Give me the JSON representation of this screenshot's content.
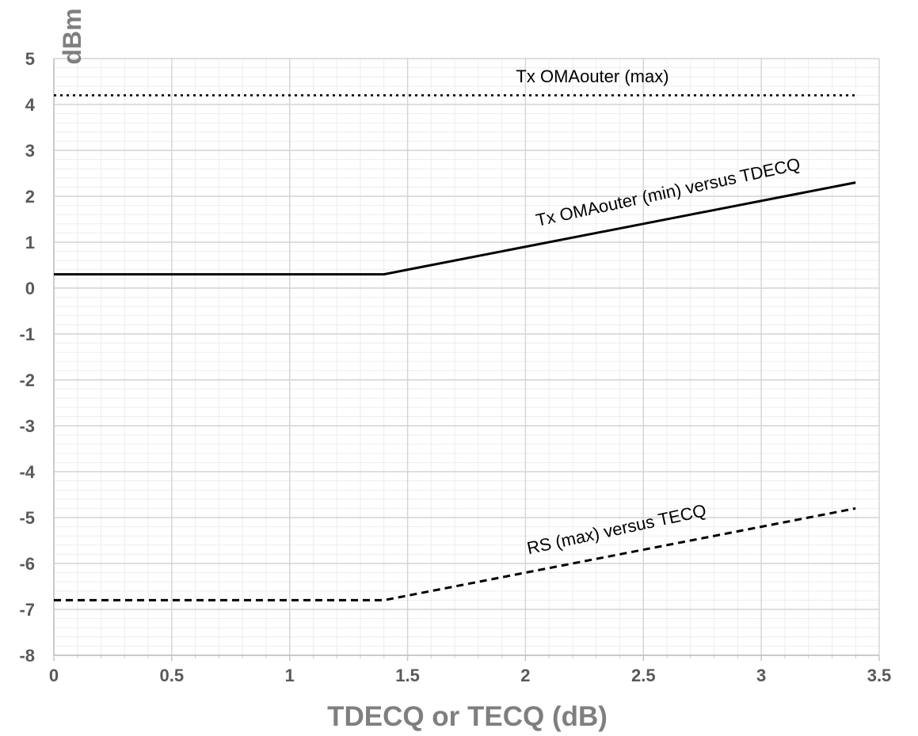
{
  "chart_data": {
    "type": "line",
    "title": "",
    "xlabel": "TDECQ or TECQ (dB)",
    "ylabel": "dBm",
    "xlim": [
      0,
      3.5
    ],
    "ylim": [
      -8,
      5
    ],
    "x_ticks": [
      "0",
      "0.5",
      "1",
      "1.5",
      "2",
      "2.5",
      "3",
      "3.5"
    ],
    "y_ticks": [
      "-8",
      "-7",
      "-6",
      "-5",
      "-4",
      "-3",
      "-2",
      "-1",
      "0",
      "1",
      "2",
      "3",
      "4",
      "5"
    ],
    "grid": true,
    "legend": "none",
    "series": [
      {
        "name": "Tx OMAouter (max)",
        "style": "dotted",
        "color": "#000000",
        "points": [
          [
            0,
            4.2
          ],
          [
            3.4,
            4.2
          ]
        ]
      },
      {
        "name": "Tx OMAouter (min) versus TDECQ",
        "style": "solid",
        "color": "#000000",
        "points": [
          [
            0,
            0.3
          ],
          [
            1.4,
            0.3
          ],
          [
            3.4,
            2.3
          ]
        ]
      },
      {
        "name": "RS (max) versus TECQ",
        "style": "dashed",
        "color": "#000000",
        "points": [
          [
            0,
            -6.8
          ],
          [
            1.4,
            -6.8
          ],
          [
            3.4,
            -4.8
          ]
        ]
      }
    ]
  }
}
